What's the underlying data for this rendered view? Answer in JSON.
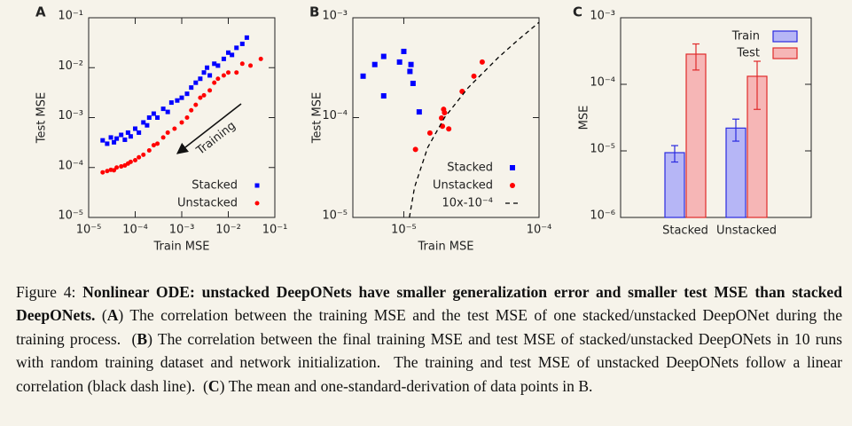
{
  "chart_data": [
    {
      "type": "scatter",
      "panel_label": "A",
      "xlabel": "Train MSE",
      "ylabel": "Test MSE",
      "annotation": "Training",
      "xlog": true,
      "ylog": true,
      "xlim": [
        1e-05,
        0.1
      ],
      "ylim": [
        1e-05,
        0.1
      ],
      "xticks": [
        {
          "value": 1e-05,
          "label": "10⁻⁵"
        },
        {
          "value": 0.0001,
          "label": "10⁻⁴"
        },
        {
          "value": 0.001,
          "label": "10⁻³"
        },
        {
          "value": 0.01,
          "label": "10⁻²"
        },
        {
          "value": 0.1,
          "label": "10⁻¹"
        }
      ],
      "yticks": [
        {
          "value": 1e-05,
          "label": "10⁻⁵"
        },
        {
          "value": 0.0001,
          "label": "10⁻⁴"
        },
        {
          "value": 0.001,
          "label": "10⁻³"
        },
        {
          "value": 0.01,
          "label": "10⁻²"
        },
        {
          "value": 0.1,
          "label": "10⁻¹"
        }
      ],
      "legend": "lower right",
      "series": [
        {
          "name": "Stacked",
          "color": "#0000ff",
          "marker": "square",
          "x": [
            2e-05,
            2.5e-05,
            3e-05,
            3.5e-05,
            4e-05,
            5e-05,
            6e-05,
            7e-05,
            8e-05,
            0.0001,
            0.00012,
            0.00015,
            0.00018,
            0.0002,
            0.00025,
            0.0003,
            0.0004,
            0.0005,
            0.0006,
            0.0008,
            0.001,
            0.0013,
            0.0016,
            0.002,
            0.0025,
            0.003,
            0.0035,
            0.004,
            0.005,
            0.006,
            0.008,
            0.01,
            0.012,
            0.015,
            0.02,
            0.025
          ],
          "values": [
            0.00035,
            0.0003,
            0.0004,
            0.00032,
            0.00038,
            0.00045,
            0.00036,
            0.0005,
            0.00042,
            0.0006,
            0.0005,
            0.0008,
            0.0007,
            0.001,
            0.0012,
            0.001,
            0.0015,
            0.0013,
            0.002,
            0.0022,
            0.0025,
            0.003,
            0.004,
            0.005,
            0.006,
            0.008,
            0.01,
            0.007,
            0.012,
            0.011,
            0.015,
            0.02,
            0.018,
            0.025,
            0.03,
            0.04
          ]
        },
        {
          "name": "Unstacked",
          "color": "#ff0000",
          "marker": "circle",
          "x": [
            2e-05,
            2.5e-05,
            3e-05,
            3.5e-05,
            4e-05,
            5e-05,
            6e-05,
            7e-05,
            8e-05,
            0.0001,
            0.00012,
            0.00015,
            0.0002,
            0.00025,
            0.0003,
            0.0004,
            0.0005,
            0.0007,
            0.001,
            0.0013,
            0.0016,
            0.002,
            0.0025,
            0.003,
            0.004,
            0.005,
            0.006,
            0.008,
            0.01,
            0.015,
            0.02,
            0.03,
            0.05
          ],
          "values": [
            8e-05,
            8.5e-05,
            9e-05,
            8.8e-05,
            0.0001,
            0.000105,
            0.00011,
            0.00012,
            0.00013,
            0.00014,
            0.00016,
            0.00018,
            0.00022,
            0.00028,
            0.0003,
            0.0004,
            0.0005,
            0.0006,
            0.0008,
            0.001,
            0.0014,
            0.0018,
            0.0025,
            0.0028,
            0.0035,
            0.005,
            0.006,
            0.007,
            0.008,
            0.008,
            0.012,
            0.011,
            0.015
          ]
        }
      ]
    },
    {
      "type": "scatter",
      "panel_label": "B",
      "xlabel": "Train MSE",
      "ylabel": "Test MSE",
      "xlog": true,
      "ylog": true,
      "xlim": [
        4.2e-06,
        0.0001
      ],
      "ylim": [
        1e-05,
        0.001
      ],
      "xticks": [
        {
          "value": 1e-05,
          "label": "10⁻⁵"
        },
        {
          "value": 0.0001,
          "label": "10⁻⁴"
        }
      ],
      "yticks": [
        {
          "value": 1e-05,
          "label": "10⁻⁵"
        },
        {
          "value": 0.0001,
          "label": "10⁻⁴"
        },
        {
          "value": 0.001,
          "label": "10⁻³"
        }
      ],
      "legend": "lower right",
      "series": [
        {
          "name": "Stacked",
          "color": "#0000ff",
          "marker": "square",
          "x": [
            5e-06,
            6.1e-06,
            7.1e-06,
            7.1e-06,
            9.3e-06,
            1e-05,
            1.13e-05,
            1.11e-05,
            1.17e-05,
            1.3e-05
          ],
          "values": [
            0.00026,
            0.00034,
            0.00041,
            0.000165,
            0.00036,
            0.00046,
            0.00034,
            0.00029,
            0.00022,
            0.000114
          ]
        },
        {
          "name": "Unstacked",
          "color": "#ff0000",
          "marker": "circle",
          "x": [
            1.22e-05,
            1.56e-05,
            1.9e-05,
            1.97e-05,
            2e-05,
            1.93e-05,
            2.15e-05,
            2.7e-05,
            3.3e-05,
            3.8e-05
          ],
          "values": [
            4.8e-05,
            7e-05,
            9.9e-05,
            0.000121,
            0.000112,
            8.2e-05,
            7.7e-05,
            0.000183,
            0.00026,
            0.00036
          ]
        },
        {
          "name": "10x-10⁻⁴",
          "color": "#000000",
          "marker": "dashed-line",
          "x": [
            1.1e-05,
            1.2e-05,
            1.5e-05,
            2e-05,
            3e-05,
            5e-05,
            7e-05,
            0.0001
          ],
          "values": [
            1e-05,
            2e-05,
            5e-05,
            0.0001,
            0.0002,
            0.0004,
            0.0006,
            0.0009
          ]
        }
      ]
    },
    {
      "type": "bar",
      "panel_label": "C",
      "ylabel": "MSE",
      "ylog": true,
      "ylim": [
        1e-06,
        0.001
      ],
      "yticks": [
        {
          "value": 1e-06,
          "label": "10⁻⁶"
        },
        {
          "value": 1e-05,
          "label": "10⁻⁵"
        },
        {
          "value": 0.0001,
          "label": "10⁻⁴"
        },
        {
          "value": 0.001,
          "label": "10⁻³"
        }
      ],
      "legend": "upper right",
      "categories": [
        "Stacked",
        "Unstacked"
      ],
      "series": [
        {
          "name": "Train",
          "color": "#2a2ae0",
          "fill": "#b6b6f6",
          "values": [
            9.4e-06,
            2.2e-05
          ],
          "error": [
            2.6e-06,
            8e-06
          ]
        },
        {
          "name": "Test",
          "color": "#e02a2a",
          "fill": "#f6b6b6",
          "values": [
            0.000284,
            0.000132
          ],
          "error": [
            0.00012,
            9e-05
          ]
        }
      ]
    }
  ],
  "caption": [
    {
      "text": "Figure 4: ",
      "bold": false
    },
    {
      "text": "Nonlinear ODE: unstacked DeepONets have smaller generalization error and smaller test MSE than stacked DeepONets.",
      "bold": true
    },
    {
      "text": " (",
      "bold": false
    },
    {
      "text": "A",
      "bold": true
    },
    {
      "text": ") The correlation between the training MSE and the test MSE of one stacked/unstacked DeepONet during the training process.  (",
      "bold": false
    },
    {
      "text": "B",
      "bold": true
    },
    {
      "text": ") The correlation between the final training MSE and test MSE of stacked/unstacked DeepONets in 10 runs with random training dataset and network initialization.  The training and test MSE of unstacked DeepONets follow a linear correlation (black dash line).  (",
      "bold": false
    },
    {
      "text": "C",
      "bold": true
    },
    {
      "text": ") The mean and one-standard-derivation of data points in B.",
      "bold": false
    }
  ]
}
